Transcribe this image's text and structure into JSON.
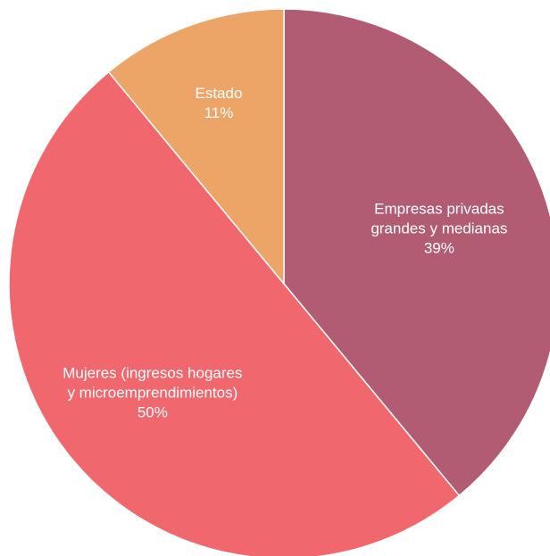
{
  "chart_data": {
    "type": "pie",
    "title": "",
    "slices": [
      {
        "name": "Empresas privadas grandes y medianas",
        "label_lines": [
          "Empresas privadas",
          "grandes y medianas",
          "39%"
        ],
        "value": 39,
        "color": "#b25c74"
      },
      {
        "name": "Mujeres (ingresos hogares y microemprendimientos)",
        "label_lines": [
          "Mujeres (ingresos hogares",
          "y microemprendimientos)",
          "50%"
        ],
        "value": 50,
        "color": "#f0676e"
      },
      {
        "name": "Estado",
        "label_lines": [
          "Estado",
          "11%"
        ],
        "value": 11,
        "color": "#eda467"
      }
    ],
    "start_angle_deg": 0,
    "direction": "clockwise",
    "legend": "none"
  }
}
